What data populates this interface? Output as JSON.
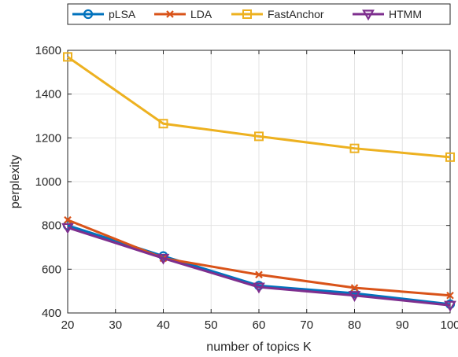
{
  "chart_data": {
    "type": "line",
    "xlabel": "number of topics K",
    "ylabel": "perplexity",
    "xlim": [
      20,
      100
    ],
    "ylim": [
      400,
      1600
    ],
    "xticks": [
      20,
      30,
      40,
      50,
      60,
      70,
      80,
      90,
      100
    ],
    "yticks": [
      400,
      600,
      800,
      1000,
      1200,
      1400,
      1600
    ],
    "grid": true,
    "legend_position": "top, outside plot, horizontal",
    "x": [
      20,
      40,
      60,
      80,
      100
    ],
    "series": [
      {
        "name": "pLSA",
        "values": [
          800,
          660,
          525,
          490,
          440
        ],
        "color": "#0072BD",
        "marker": "circle"
      },
      {
        "name": "LDA",
        "values": [
          825,
          650,
          575,
          515,
          480
        ],
        "color": "#D95319",
        "marker": "x"
      },
      {
        "name": "FastAnchor",
        "values": [
          1570,
          1265,
          1207,
          1152,
          1112
        ],
        "color": "#EDB120",
        "marker": "square"
      },
      {
        "name": "HTMM",
        "values": [
          790,
          650,
          518,
          480,
          435
        ],
        "color": "#7E2F8E",
        "marker": "triangle-down"
      }
    ]
  }
}
